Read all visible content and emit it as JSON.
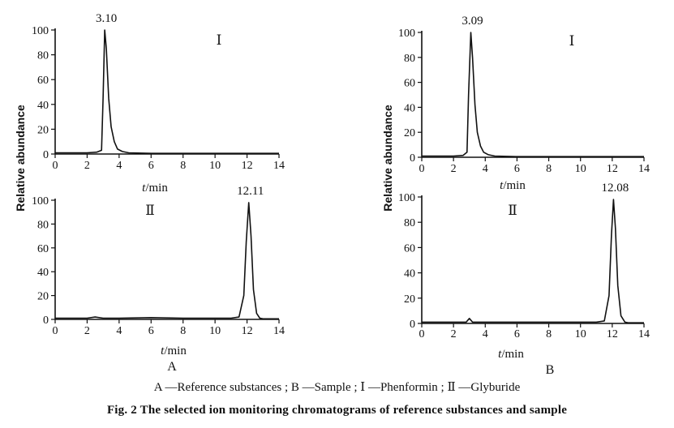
{
  "chart_data": [
    {
      "type": "line",
      "panel": "A",
      "trace": "I",
      "ylabel": "Relative abundance",
      "xlabel": "t/min",
      "xlim": [
        0,
        14
      ],
      "ylim": [
        0,
        100
      ],
      "x_ticks": [
        "0",
        "2",
        "4",
        "6",
        "8",
        "10",
        "12",
        "14"
      ],
      "y_ticks": [
        "0",
        "20",
        "40",
        "60",
        "80",
        "100"
      ],
      "peak_label": "3.10",
      "trace_label": "Ⅰ",
      "series": [
        {
          "x": [
            0,
            1,
            2,
            2.6,
            2.9,
            3.0,
            3.1,
            3.2,
            3.35,
            3.5,
            3.7,
            3.9,
            4.2,
            4.6,
            6,
            8,
            10,
            12,
            14
          ],
          "y": [
            1,
            1,
            1,
            1.5,
            3,
            45,
            100,
            85,
            45,
            22,
            10,
            4,
            2,
            1,
            0.5,
            0.5,
            0.5,
            0.5,
            0.5
          ]
        }
      ]
    },
    {
      "type": "line",
      "panel": "A",
      "trace": "II",
      "xlabel": "t/min",
      "xlim": [
        0,
        14
      ],
      "ylim": [
        0,
        100
      ],
      "x_ticks": [
        "0",
        "2",
        "4",
        "6",
        "8",
        "10",
        "12",
        "14"
      ],
      "y_ticks": [
        "0",
        "20",
        "40",
        "60",
        "80",
        "100"
      ],
      "peak_label": "12.11",
      "trace_label": "Ⅱ",
      "panel_letter": "A",
      "series": [
        {
          "x": [
            0,
            1,
            2,
            2.5,
            3,
            4,
            6,
            8,
            10,
            11,
            11.5,
            11.8,
            11.95,
            12.11,
            12.25,
            12.4,
            12.6,
            12.8,
            13,
            14
          ],
          "y": [
            1,
            1,
            1,
            2,
            1,
            1,
            1.5,
            1,
            1,
            1,
            2,
            20,
            65,
            98,
            70,
            25,
            5,
            1,
            0.5,
            0.5
          ]
        }
      ]
    },
    {
      "type": "line",
      "panel": "B",
      "trace": "I",
      "ylabel": "Relative abundance",
      "xlabel": "t/min",
      "xlim": [
        0,
        14
      ],
      "ylim": [
        0,
        100
      ],
      "x_ticks": [
        "0",
        "2",
        "4",
        "6",
        "8",
        "10",
        "12",
        "14"
      ],
      "y_ticks": [
        "0",
        "20",
        "40",
        "60",
        "80",
        "100"
      ],
      "peak_label": "3.09",
      "trace_label": "Ⅰ",
      "series": [
        {
          "x": [
            0,
            1,
            2,
            2.6,
            2.85,
            2.95,
            3.09,
            3.2,
            3.35,
            3.5,
            3.7,
            3.9,
            4.2,
            4.6,
            6,
            8,
            10,
            12,
            14
          ],
          "y": [
            1,
            1,
            1,
            1.5,
            4,
            50,
            100,
            80,
            42,
            20,
            9,
            4,
            2,
            1,
            0.5,
            0.5,
            0.5,
            0.5,
            0.5
          ]
        }
      ]
    },
    {
      "type": "line",
      "panel": "B",
      "trace": "II",
      "xlabel": "t/min",
      "xlim": [
        0,
        14
      ],
      "ylim": [
        0,
        100
      ],
      "x_ticks": [
        "0",
        "2",
        "4",
        "6",
        "8",
        "10",
        "12",
        "14"
      ],
      "y_ticks": [
        "0",
        "20",
        "40",
        "60",
        "80",
        "100"
      ],
      "peak_label": "12.08",
      "trace_label": "Ⅱ",
      "panel_letter": "B",
      "series": [
        {
          "x": [
            0,
            1,
            2,
            2.8,
            3.0,
            3.2,
            4,
            6,
            8,
            10,
            11,
            11.5,
            11.8,
            11.95,
            12.08,
            12.2,
            12.35,
            12.55,
            12.8,
            13,
            14
          ],
          "y": [
            1,
            1,
            1,
            1,
            4,
            1,
            1,
            1,
            1,
            1,
            1,
            2,
            22,
            70,
            98,
            75,
            30,
            6,
            1,
            0.5,
            0.5
          ]
        }
      ]
    }
  ],
  "legend_text": "A —Reference substances ; B —Sample ;   Ⅰ —Phenformin ;   Ⅱ —Glyburide",
  "caption": "Fig. 2    The selected ion monitoring chromatograms of reference substances and sample"
}
